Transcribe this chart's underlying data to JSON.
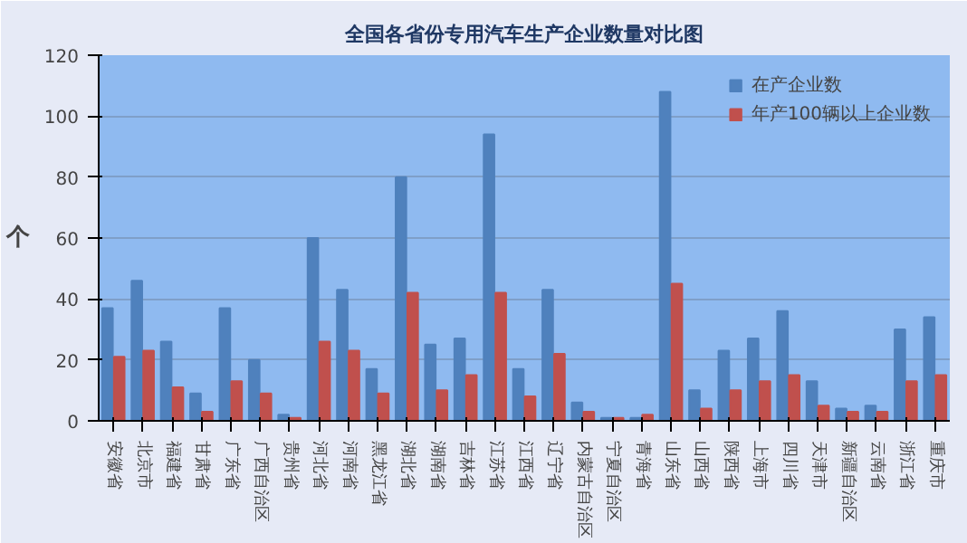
{
  "chart_data": {
    "type": "bar",
    "title": "全国各省份专用汽车生产企业数量对比图",
    "ylabel": "个",
    "categories": [
      "安徽省",
      "北京市",
      "福建省",
      "甘肃省",
      "广东省",
      "广西自治区",
      "贵州省",
      "河北省",
      "河南省",
      "黑龙江省",
      "湖北省",
      "湖南省",
      "吉林省",
      "江苏省",
      "江西省",
      "辽宁省",
      "内蒙古自治区",
      "宁夏自治区",
      "青海省",
      "山东省",
      "山西省",
      "陕西省",
      "上海市",
      "四川省",
      "天津市",
      "新疆自治区",
      "云南省",
      "浙江省",
      "重庆市"
    ],
    "series": [
      {
        "name": "在产企业数",
        "color": "#4f81bd",
        "values": [
          37,
          46,
          26,
          9,
          37,
          20,
          2,
          60,
          43,
          17,
          80,
          25,
          27,
          94,
          17,
          43,
          6,
          1,
          1,
          108,
          10,
          23,
          27,
          36,
          13,
          4,
          5,
          30,
          34
        ]
      },
      {
        "name": "年产100辆以上企业数",
        "color": "#c0504d",
        "values": [
          21,
          23,
          11,
          3,
          13,
          9,
          1,
          26,
          23,
          9,
          42,
          10,
          15,
          42,
          8,
          22,
          3,
          1,
          2,
          45,
          4,
          10,
          13,
          15,
          5,
          3,
          3,
          13,
          15
        ]
      }
    ],
    "ylim": [
      0,
      120
    ],
    "yticks": [
      0,
      20,
      40,
      60,
      80,
      100,
      120
    ],
    "grid": "y",
    "legend": "top right"
  }
}
